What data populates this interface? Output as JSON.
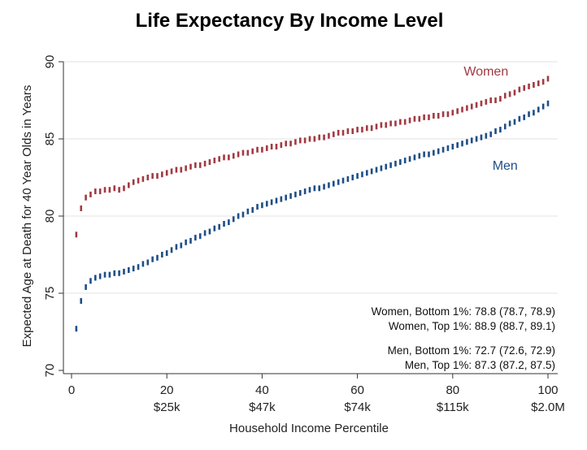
{
  "chart_data": {
    "type": "scatter",
    "title": "Life Expectancy By Income Level",
    "xlabel": "Household Income Percentile",
    "ylabel": "Expected Age at Death for 40 Year Olds in Years",
    "xlim": [
      0,
      100
    ],
    "ylim": [
      70,
      90
    ],
    "x_ticks": [
      {
        "value": 0,
        "label": "0",
        "sublabel": ""
      },
      {
        "value": 20,
        "label": "20",
        "sublabel": "$25k"
      },
      {
        "value": 40,
        "label": "40",
        "sublabel": "$47k"
      },
      {
        "value": 60,
        "label": "60",
        "sublabel": "$74k"
      },
      {
        "value": 80,
        "label": "80",
        "sublabel": "$115k"
      },
      {
        "value": 100,
        "label": "100",
        "sublabel": "$2.0M"
      }
    ],
    "y_ticks": [
      "70",
      "75",
      "80",
      "85",
      "90"
    ],
    "grid": true,
    "series": [
      {
        "name": "Women",
        "color": "#a13a43",
        "x": [
          1,
          2,
          3,
          4,
          5,
          6,
          7,
          8,
          9,
          10,
          11,
          12,
          13,
          14,
          15,
          16,
          17,
          18,
          19,
          20,
          21,
          22,
          23,
          24,
          25,
          26,
          27,
          28,
          29,
          30,
          31,
          32,
          33,
          34,
          35,
          36,
          37,
          38,
          39,
          40,
          41,
          42,
          43,
          44,
          45,
          46,
          47,
          48,
          49,
          50,
          51,
          52,
          53,
          54,
          55,
          56,
          57,
          58,
          59,
          60,
          61,
          62,
          63,
          64,
          65,
          66,
          67,
          68,
          69,
          70,
          71,
          72,
          73,
          74,
          75,
          76,
          77,
          78,
          79,
          80,
          81,
          82,
          83,
          84,
          85,
          86,
          87,
          88,
          89,
          90,
          91,
          92,
          93,
          94,
          95,
          96,
          97,
          98,
          99,
          100
        ],
        "y": [
          78.8,
          80.5,
          81.2,
          81.4,
          81.6,
          81.6,
          81.7,
          81.7,
          81.8,
          81.7,
          81.8,
          82.0,
          82.2,
          82.3,
          82.4,
          82.5,
          82.6,
          82.6,
          82.7,
          82.8,
          82.9,
          83.0,
          83.0,
          83.1,
          83.2,
          83.3,
          83.3,
          83.4,
          83.5,
          83.6,
          83.7,
          83.8,
          83.8,
          83.9,
          84.0,
          84.1,
          84.1,
          84.2,
          84.3,
          84.3,
          84.4,
          84.5,
          84.5,
          84.6,
          84.7,
          84.7,
          84.8,
          84.9,
          84.9,
          85.0,
          85.0,
          85.1,
          85.1,
          85.2,
          85.3,
          85.4,
          85.4,
          85.5,
          85.5,
          85.6,
          85.6,
          85.7,
          85.7,
          85.8,
          85.9,
          85.9,
          86.0,
          86.0,
          86.1,
          86.1,
          86.2,
          86.3,
          86.3,
          86.4,
          86.4,
          86.5,
          86.5,
          86.6,
          86.6,
          86.7,
          86.8,
          86.9,
          87.0,
          87.1,
          87.2,
          87.3,
          87.4,
          87.5,
          87.5,
          87.6,
          87.8,
          87.9,
          88.0,
          88.2,
          88.3,
          88.4,
          88.5,
          88.6,
          88.7,
          88.9
        ]
      },
      {
        "name": "Men",
        "color": "#1f4e86",
        "x": [
          1,
          2,
          3,
          4,
          5,
          6,
          7,
          8,
          9,
          10,
          11,
          12,
          13,
          14,
          15,
          16,
          17,
          18,
          19,
          20,
          21,
          22,
          23,
          24,
          25,
          26,
          27,
          28,
          29,
          30,
          31,
          32,
          33,
          34,
          35,
          36,
          37,
          38,
          39,
          40,
          41,
          42,
          43,
          44,
          45,
          46,
          47,
          48,
          49,
          50,
          51,
          52,
          53,
          54,
          55,
          56,
          57,
          58,
          59,
          60,
          61,
          62,
          63,
          64,
          65,
          66,
          67,
          68,
          69,
          70,
          71,
          72,
          73,
          74,
          75,
          76,
          77,
          78,
          79,
          80,
          81,
          82,
          83,
          84,
          85,
          86,
          87,
          88,
          89,
          90,
          91,
          92,
          93,
          94,
          95,
          96,
          97,
          98,
          99,
          100
        ],
        "y": [
          72.7,
          74.5,
          75.4,
          75.8,
          76.0,
          76.1,
          76.2,
          76.2,
          76.3,
          76.3,
          76.4,
          76.5,
          76.6,
          76.7,
          76.9,
          77.0,
          77.2,
          77.3,
          77.5,
          77.6,
          77.8,
          78.0,
          78.1,
          78.3,
          78.4,
          78.6,
          78.7,
          78.9,
          79.0,
          79.2,
          79.3,
          79.5,
          79.6,
          79.8,
          80.0,
          80.1,
          80.3,
          80.4,
          80.6,
          80.7,
          80.8,
          80.9,
          81.0,
          81.1,
          81.2,
          81.3,
          81.4,
          81.5,
          81.6,
          81.7,
          81.8,
          81.8,
          81.9,
          82.0,
          82.1,
          82.2,
          82.3,
          82.4,
          82.5,
          82.6,
          82.7,
          82.8,
          82.9,
          83.0,
          83.1,
          83.2,
          83.3,
          83.4,
          83.5,
          83.6,
          83.7,
          83.8,
          83.9,
          84.0,
          84.0,
          84.1,
          84.2,
          84.3,
          84.4,
          84.5,
          84.6,
          84.7,
          84.8,
          84.9,
          85.0,
          85.1,
          85.2,
          85.3,
          85.5,
          85.6,
          85.8,
          86.0,
          86.1,
          86.3,
          86.4,
          86.6,
          86.7,
          86.9,
          87.1,
          87.3
        ]
      }
    ],
    "series_labels": [
      {
        "text": "Women",
        "x": 87,
        "y": 89.1
      },
      {
        "text": "Men",
        "x": 91,
        "y": 83.0
      }
    ],
    "annotations": [
      "Women, Bottom 1%: 78.8 (78.7, 78.9)",
      "Women, Top 1%: 88.9 (88.7, 89.1)",
      "Men, Bottom 1%: 72.7 (72.6, 72.9)",
      "Men, Top 1%: 87.3 (87.2, 87.5)"
    ]
  }
}
